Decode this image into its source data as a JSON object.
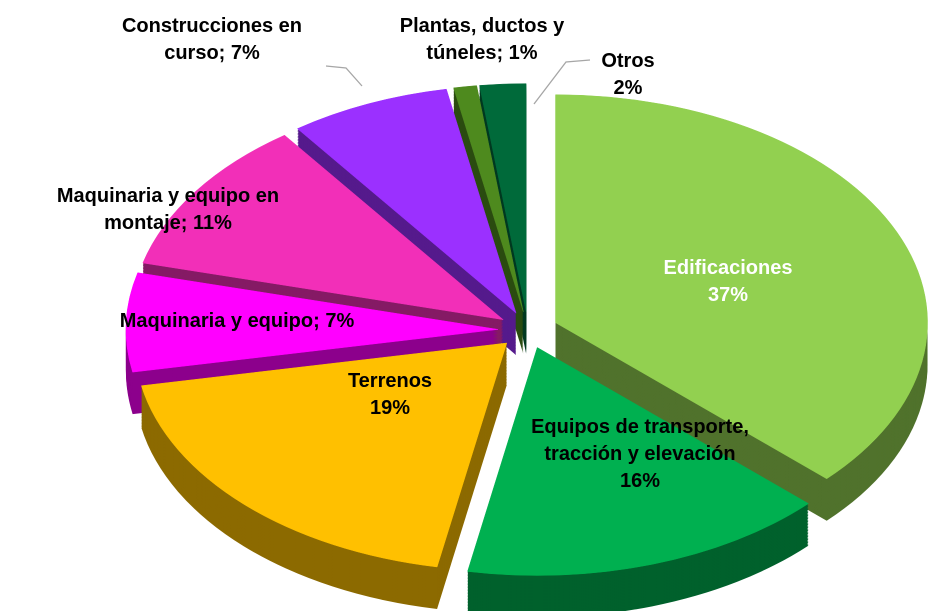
{
  "chart_data": {
    "type": "pie3d",
    "categories": [
      "Edificaciones",
      "Equipos de transporte, tracción y elevación",
      "Terrenos",
      "Maquinaria y equipo",
      "Maquinaria y equipo en montaje",
      "Construcciones en curso",
      "Plantas, ductos y túneles",
      "Otros"
    ],
    "values": [
      37,
      16,
      19,
      7,
      11,
      7,
      1,
      2
    ],
    "value_labels": [
      "37%",
      "16%",
      "19%",
      "7%",
      "11%",
      "7%",
      "1%",
      "2%"
    ],
    "colors": [
      "#92d050",
      "#00b050",
      "#ffc000",
      "#ff00ff",
      "#f22fb8",
      "#9b30ff",
      "#4e8a1e",
      "#006a3a"
    ],
    "label_separator": "; "
  }
}
